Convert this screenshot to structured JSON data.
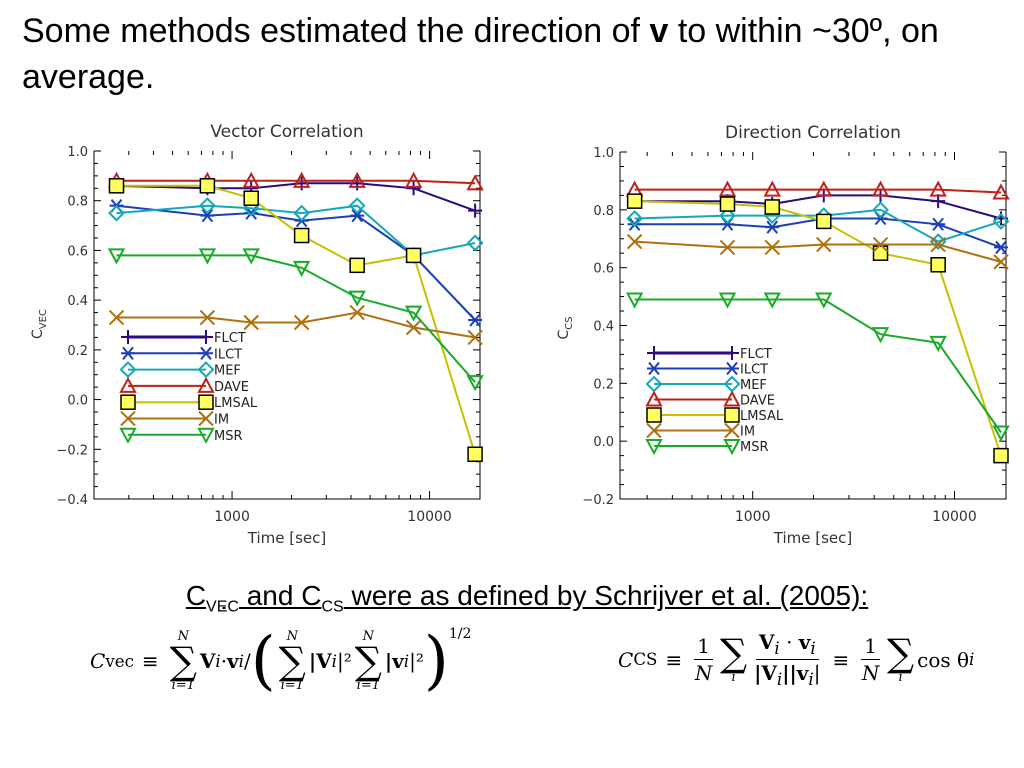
{
  "slide": {
    "title_pre": "Some methods estimated the direction of",
    "title_bold": "v",
    "title_post": "to within ~30º, on average.",
    "caption": {
      "c1": "C",
      "sub1": "VEC",
      "and": " and C",
      "sub2": "CS",
      "rest": " were as defined by Schrijver et al. (2005):"
    },
    "eq_left": {
      "lhs": "C",
      "lhs_sub": "vec",
      "equiv": "≡",
      "sum_top": "N",
      "sum_bottom": "i=1",
      "term1": "V",
      "term1_sub": "i",
      "dot": "·",
      "term2": "v",
      "term2_sub": "i",
      "slash": "/",
      "abs_V": "|V",
      "abs_v": "|v",
      "sq": "|²",
      "power": "1/2"
    },
    "eq_right": {
      "lhs": "C",
      "lhs_sub": "CS",
      "equiv": "≡",
      "one": "1",
      "N": "N",
      "sum_bottom": "i",
      "num": "V",
      "num_sub": "i",
      "dot": "·",
      "num2": "v",
      "den": "|V",
      "den2": "||v",
      "den_end": "|",
      "cos": "cos θ",
      "cos_sub": "i"
    }
  },
  "colors": {
    "FLCT": "#2a0a80",
    "ILCT": "#1c3fb8",
    "MEF": "#14a8b8",
    "DAVE": "#c0201a",
    "LMSAL": "#c8c000",
    "IM": "#b07010",
    "MSR": "#18aa28",
    "axis": "#000000",
    "marker_fill_LMSAL": "#ffff60"
  },
  "markers": {
    "FLCT": "plus",
    "ILCT": "asterisk",
    "MEF": "diamond",
    "DAVE": "triangle-up",
    "LMSAL": "square",
    "IM": "cross",
    "MSR": "triangle-down"
  },
  "chart_data": [
    {
      "type": "line",
      "title": "Vector Correlation",
      "xlabel": "Time [sec]",
      "ylabel": "C",
      "ylabel_sub": "VEC",
      "xscale": "log",
      "xlim": [
        200,
        18000
      ],
      "ylim": [
        -0.4,
        1.0
      ],
      "xticks": [
        1000,
        10000
      ],
      "xtick_labels": [
        "1000",
        "10000"
      ],
      "yticks": [
        -0.4,
        -0.2,
        0.0,
        0.2,
        0.4,
        0.6,
        0.8,
        1.0
      ],
      "ytick_labels": [
        "−0.4",
        "−0.2",
        "0.0",
        "0.2",
        "0.4",
        "0.6",
        "0.8",
        "1.0"
      ],
      "legend_placement": "lower-left",
      "x": [
        260,
        750,
        1250,
        2250,
        4300,
        8300,
        17000
      ],
      "series": [
        {
          "name": "FLCT",
          "values": [
            0.86,
            0.85,
            0.85,
            0.87,
            0.87,
            0.85,
            0.76
          ]
        },
        {
          "name": "ILCT",
          "values": [
            0.78,
            0.74,
            0.75,
            0.72,
            0.74,
            0.58,
            0.32
          ]
        },
        {
          "name": "MEF",
          "values": [
            0.75,
            0.78,
            0.77,
            0.75,
            0.78,
            0.58,
            0.63
          ]
        },
        {
          "name": "DAVE",
          "values": [
            0.88,
            0.88,
            0.88,
            0.88,
            0.88,
            0.88,
            0.87
          ]
        },
        {
          "name": "LMSAL",
          "values": [
            0.86,
            0.86,
            0.81,
            0.66,
            0.54,
            0.58,
            -0.22
          ]
        },
        {
          "name": "IM",
          "values": [
            0.33,
            0.33,
            0.31,
            0.31,
            0.35,
            0.29,
            0.25
          ]
        },
        {
          "name": "MSR",
          "values": [
            0.58,
            0.58,
            0.58,
            0.53,
            0.41,
            0.35,
            0.07
          ]
        }
      ]
    },
    {
      "type": "line",
      "title": "Direction Correlation",
      "xlabel": "Time [sec]",
      "ylabel": "C",
      "ylabel_sub": "CS",
      "xscale": "log",
      "xlim": [
        220,
        18000
      ],
      "ylim": [
        -0.2,
        1.0
      ],
      "xticks": [
        1000,
        10000
      ],
      "xtick_labels": [
        "1000",
        "10000"
      ],
      "yticks": [
        -0.2,
        0.0,
        0.2,
        0.4,
        0.6,
        0.8,
        1.0
      ],
      "ytick_labels": [
        "−0.2",
        "0.0",
        "0.2",
        "0.4",
        "0.6",
        "0.8",
        "1.0"
      ],
      "legend_placement": "lower-left",
      "x": [
        260,
        750,
        1250,
        2250,
        4300,
        8300,
        17000
      ],
      "series": [
        {
          "name": "FLCT",
          "values": [
            0.83,
            0.83,
            0.82,
            0.85,
            0.85,
            0.83,
            0.77
          ]
        },
        {
          "name": "ILCT",
          "values": [
            0.75,
            0.75,
            0.74,
            0.77,
            0.77,
            0.75,
            0.67
          ]
        },
        {
          "name": "MEF",
          "values": [
            0.77,
            0.78,
            0.78,
            0.78,
            0.8,
            0.69,
            0.76
          ]
        },
        {
          "name": "DAVE",
          "values": [
            0.87,
            0.87,
            0.87,
            0.87,
            0.87,
            0.87,
            0.86
          ]
        },
        {
          "name": "LMSAL",
          "values": [
            0.83,
            0.82,
            0.81,
            0.76,
            0.65,
            0.61,
            -0.05
          ]
        },
        {
          "name": "IM",
          "values": [
            0.69,
            0.67,
            0.67,
            0.68,
            0.68,
            0.68,
            0.62
          ]
        },
        {
          "name": "MSR",
          "values": [
            0.49,
            0.49,
            0.49,
            0.49,
            0.37,
            0.34,
            0.03
          ]
        }
      ]
    }
  ]
}
